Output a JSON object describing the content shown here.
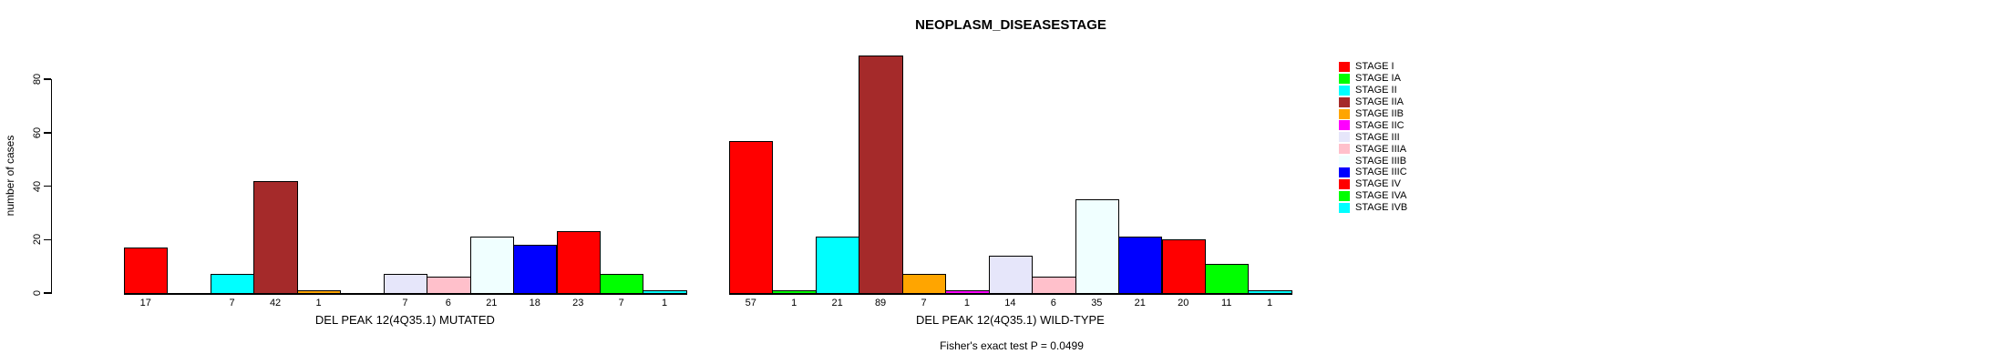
{
  "chart_data": {
    "type": "bar",
    "title": "NEOPLASM_DISEASESTAGE",
    "ylabel": "number of cases",
    "ylim": [
      0,
      80
    ],
    "yticks": [
      0,
      20,
      40,
      60,
      80
    ],
    "grid": false,
    "legend_position": "right",
    "bar_border_color": "#000000",
    "categories": [
      "STAGE I",
      "STAGE IA",
      "STAGE II",
      "STAGE IIA",
      "STAGE IIB",
      "STAGE IIC",
      "STAGE III",
      "STAGE IIIA",
      "STAGE IIIB",
      "STAGE IIIC",
      "STAGE IV",
      "STAGE IVA",
      "STAGE IVB"
    ],
    "colors": [
      "#FF0000",
      "#00FF00",
      "#00FFFF",
      "#A52A2A",
      "#FFA500",
      "#FF00FF",
      "#E6E6FA",
      "#FFC0CB",
      "#F0FFFF",
      "#0000FF",
      "#FF0000",
      "#00FF00",
      "#00FFFF"
    ],
    "series": [
      {
        "name": "DEL PEAK 12(4Q35.1) MUTATED",
        "values": [
          17,
          0,
          7,
          42,
          1,
          0,
          7,
          6,
          21,
          18,
          23,
          7,
          1
        ]
      },
      {
        "name": "DEL PEAK 12(4Q35.1) WILD-TYPE",
        "values": [
          57,
          1,
          21,
          89,
          7,
          1,
          14,
          6,
          35,
          21,
          20,
          11,
          1
        ]
      }
    ],
    "bar_labels_note": "each bar's count is printed under its bar; zero-count categories have no bar and no label",
    "annotation": "Fisher's exact test P = 0.0499"
  }
}
